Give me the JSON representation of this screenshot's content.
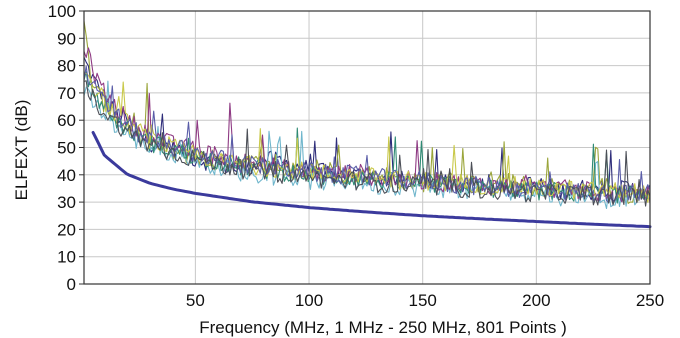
{
  "chart_data": {
    "type": "line",
    "title": "",
    "xlabel": "Frequency (MHz, 1 MHz - 250 MHz, 801 Points )",
    "ylabel": "ELFEXT (dB)",
    "xlim": [
      1,
      250
    ],
    "ylim": [
      0,
      100
    ],
    "x_ticks": [
      50,
      100,
      150,
      200,
      250
    ],
    "y_ticks": [
      0,
      10,
      20,
      30,
      40,
      50,
      60,
      70,
      80,
      90,
      100
    ],
    "grid": true,
    "legend": "none",
    "limit_line": {
      "color": "#3b3a9c",
      "x": [
        5,
        10,
        20,
        30,
        40,
        50,
        75,
        100,
        125,
        150,
        175,
        200,
        225,
        250
      ],
      "y": [
        55.5,
        47.1,
        40.2,
        36.9,
        34.8,
        33.2,
        30.1,
        28.0,
        26.4,
        25.0,
        23.9,
        22.9,
        21.9,
        21.0
      ]
    },
    "series": [
      {
        "color": "#2e2d7a",
        "x": [
          1,
          5,
          10,
          15,
          20,
          25,
          30,
          40,
          50,
          60,
          70,
          80,
          90,
          100,
          110,
          120,
          130,
          140,
          150,
          160,
          170,
          180,
          190,
          200,
          210,
          220,
          230,
          240,
          250
        ],
        "y": [
          82,
          75,
          68,
          62,
          60,
          55,
          52,
          50,
          46,
          44,
          42,
          46,
          44,
          42,
          40,
          40,
          39,
          38,
          38,
          37,
          36,
          38,
          35,
          37,
          34,
          35,
          33,
          35,
          34
        ]
      },
      {
        "color": "#9aa53a",
        "x": [
          1,
          5,
          10,
          15,
          20,
          25,
          30,
          40,
          50,
          60,
          70,
          80,
          90,
          100,
          110,
          120,
          130,
          140,
          150,
          160,
          170,
          180,
          190,
          200,
          210,
          220,
          230,
          240,
          250
        ],
        "y": [
          94,
          72,
          66,
          61,
          58,
          54,
          53,
          48,
          47,
          44,
          46,
          43,
          41,
          43,
          42,
          39,
          41,
          38,
          37,
          40,
          36,
          38,
          37,
          35,
          36,
          34,
          36,
          33,
          33
        ]
      },
      {
        "color": "#6fb6cc",
        "x": [
          1,
          5,
          10,
          15,
          20,
          25,
          30,
          40,
          50,
          60,
          70,
          80,
          90,
          100,
          110,
          120,
          130,
          140,
          150,
          160,
          170,
          180,
          190,
          200,
          210,
          220,
          230,
          240,
          250
        ],
        "y": [
          70,
          66,
          62,
          58,
          55,
          52,
          50,
          48,
          46,
          43,
          41,
          40,
          39,
          38,
          37,
          38,
          36,
          36,
          35,
          35,
          34,
          35,
          33,
          34,
          32,
          33,
          31,
          32,
          31
        ]
      },
      {
        "color": "#8e3a83",
        "x": [
          1,
          5,
          10,
          15,
          20,
          25,
          30,
          40,
          50,
          60,
          70,
          80,
          90,
          100,
          110,
          120,
          130,
          140,
          150,
          160,
          170,
          180,
          190,
          200,
          210,
          220,
          230,
          240,
          250
        ],
        "y": [
          88,
          78,
          70,
          65,
          60,
          57,
          55,
          51,
          49,
          47,
          45,
          44,
          42,
          41,
          40,
          41,
          39,
          38,
          38,
          37,
          37,
          36,
          36,
          35,
          35,
          34,
          34,
          33,
          33
        ]
      },
      {
        "color": "#2f8a74",
        "x": [
          1,
          5,
          10,
          15,
          20,
          25,
          30,
          40,
          50,
          60,
          70,
          80,
          90,
          100,
          110,
          120,
          130,
          140,
          150,
          160,
          170,
          180,
          190,
          200,
          210,
          220,
          230,
          240,
          250
        ],
        "y": [
          76,
          70,
          65,
          60,
          57,
          54,
          52,
          49,
          47,
          45,
          43,
          42,
          41,
          40,
          39,
          39,
          38,
          37,
          37,
          36,
          36,
          35,
          35,
          34,
          34,
          33,
          33,
          33,
          32
        ]
      },
      {
        "color": "#c9c94a",
        "x": [
          1,
          5,
          10,
          15,
          20,
          25,
          30,
          40,
          50,
          60,
          70,
          80,
          90,
          100,
          110,
          120,
          130,
          140,
          150,
          160,
          170,
          180,
          190,
          200,
          210,
          220,
          230,
          240,
          250
        ],
        "y": [
          80,
          73,
          67,
          62,
          59,
          56,
          53,
          50,
          48,
          45,
          44,
          43,
          42,
          41,
          40,
          40,
          39,
          38,
          38,
          37,
          37,
          36,
          36,
          35,
          35,
          34,
          34,
          34,
          33
        ]
      },
      {
        "color": "#5a5da8",
        "x": [
          1,
          5,
          10,
          15,
          20,
          25,
          30,
          40,
          50,
          60,
          70,
          80,
          90,
          100,
          110,
          120,
          130,
          140,
          150,
          160,
          170,
          180,
          190,
          200,
          210,
          220,
          230,
          240,
          250
        ],
        "y": [
          78,
          72,
          66,
          62,
          58,
          55,
          53,
          50,
          48,
          46,
          44,
          43,
          42,
          41,
          40,
          40,
          39,
          38,
          38,
          37,
          36,
          36,
          35,
          35,
          34,
          34,
          33,
          33,
          32
        ]
      },
      {
        "color": "#4c4f57",
        "x": [
          1,
          5,
          10,
          15,
          20,
          25,
          30,
          40,
          50,
          60,
          70,
          80,
          90,
          100,
          110,
          120,
          130,
          140,
          150,
          160,
          170,
          180,
          190,
          200,
          210,
          220,
          230,
          240,
          250
        ],
        "y": [
          74,
          68,
          63,
          59,
          56,
          53,
          51,
          48,
          46,
          44,
          42,
          41,
          40,
          39,
          38,
          38,
          37,
          36,
          36,
          35,
          35,
          34,
          34,
          33,
          33,
          33,
          32,
          32,
          32
        ]
      }
    ]
  }
}
